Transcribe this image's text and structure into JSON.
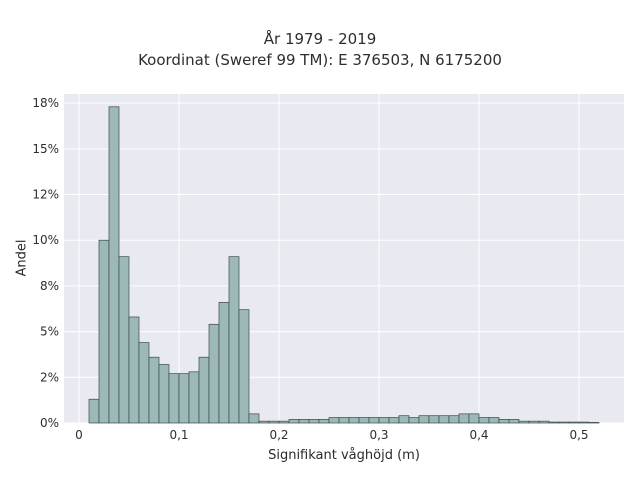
{
  "chart_data": {
    "type": "bar",
    "title_line1": "År 1979 - 2019",
    "title_line2": "Koordinat (Sweref 99 TM): E 376503, N 6175200",
    "xlabel": "Signifikant våghöjd (m)",
    "ylabel": "Andel",
    "xlim": [
      -0.015,
      0.545
    ],
    "ylim": [
      0,
      0.18
    ],
    "bin_width": 0.01,
    "bin_start": 0.01,
    "x_ticks": [
      0,
      0.1,
      0.2,
      0.3,
      0.4,
      0.5
    ],
    "x_tick_labels": [
      "0",
      "0,1",
      "0,2",
      "0,3",
      "0,4",
      "0,5"
    ],
    "y_ticks": [
      0,
      0.025,
      0.05,
      0.075,
      0.1,
      0.125,
      0.15,
      0.175
    ],
    "y_tick_labels": [
      "0%",
      "2%",
      "5%",
      "8%",
      "10%",
      "12%",
      "15%",
      "18%"
    ],
    "values": [
      0.013,
      0.1,
      0.173,
      0.091,
      0.058,
      0.044,
      0.036,
      0.032,
      0.027,
      0.027,
      0.028,
      0.036,
      0.054,
      0.066,
      0.091,
      0.062,
      0.005,
      0.001,
      0.001,
      0.001,
      0.002,
      0.002,
      0.002,
      0.002,
      0.003,
      0.003,
      0.003,
      0.003,
      0.003,
      0.003,
      0.003,
      0.004,
      0.003,
      0.004,
      0.004,
      0.004,
      0.004,
      0.005,
      0.005,
      0.003,
      0.003,
      0.002,
      0.002,
      0.001,
      0.001,
      0.001,
      0.0005,
      0.0005,
      0.0005,
      0.0005,
      0.0003
    ],
    "colors": {
      "bar_fill": "#9db8b8",
      "bar_edge": "#3a4a48",
      "plot_bg": "#e9e9f1",
      "grid": "#ffffff"
    },
    "grid": true
  }
}
